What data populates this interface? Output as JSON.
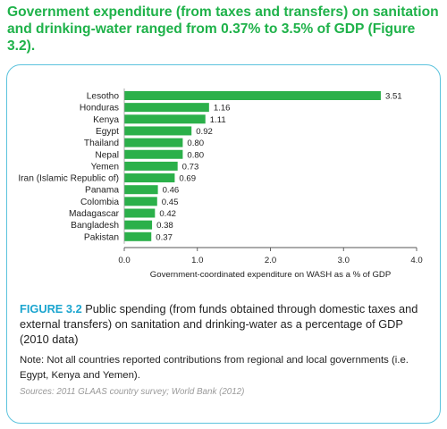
{
  "headline": "Government expenditure (from taxes and transfers) on sanitation and drinking-water ranged from 0.37% to 3.5% of GDP (Figure 3.2).",
  "caption": {
    "figure_label": "FIGURE 3.2",
    "text": " Public spending (from funds obtained through domestic taxes and external transfers) on sanitation and drinking-water as a percentage of GDP (2010 data)"
  },
  "note": "Note: Not all countries reported contributions from regional and local governments (i.e. Egypt, Kenya and Yemen).",
  "sources": "Sources: 2011 GLAAS country survey; World Bank (2012)",
  "colors": {
    "bar": "#2bb04a",
    "headline": "#1fb24a",
    "accent": "#1ba5cf",
    "border": "#5cc3dd"
  },
  "chart_data": {
    "type": "bar",
    "orientation": "horizontal",
    "categories": [
      "Lesotho",
      "Honduras",
      "Kenya",
      "Egypt",
      "Thailand",
      "Nepal",
      "Yemen",
      "Iran (Islamic Republic of)",
      "Panama",
      "Colombia",
      "Madagascar",
      "Bangladesh",
      "Pakistan"
    ],
    "values": [
      3.51,
      1.16,
      1.11,
      0.92,
      0.8,
      0.8,
      0.73,
      0.69,
      0.46,
      0.45,
      0.42,
      0.38,
      0.37
    ],
    "value_labels": [
      "3.51",
      "1.16",
      "1.11",
      "0.92",
      "0.80",
      "0.80",
      "0.73",
      "0.69",
      "0.46",
      "0.45",
      "0.42",
      "0.38",
      "0.37"
    ],
    "xlabel": "Government-coordinated expenditure on WASH as a % of GDP",
    "xlim": [
      0,
      4.0
    ],
    "xticks": [
      0,
      1,
      2,
      3,
      4
    ],
    "xtick_labels": [
      "0.0",
      "1.0",
      "2.0",
      "3.0",
      "4.0"
    ],
    "grid": false,
    "legend": "none"
  }
}
